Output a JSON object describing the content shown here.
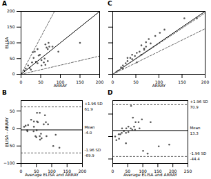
{
  "chart_data": [
    {
      "type": "scatter",
      "title": "A",
      "series": [
        {
          "type": "scatter",
          "color": "#555555",
          "x": [
            8,
            12,
            18,
            22,
            28,
            32,
            38,
            42,
            48,
            52,
            58,
            62,
            68,
            72,
            62,
            68,
            35,
            42,
            52,
            25,
            30,
            45,
            60,
            70,
            80,
            95,
            150,
            65
          ],
          "values": [
            12,
            18,
            28,
            20,
            38,
            52,
            40,
            80,
            62,
            45,
            38,
            95,
            80,
            88,
            30,
            42,
            72,
            35,
            28,
            15,
            70,
            60,
            50,
            100,
            88,
            72,
            100,
            85
          ]
        },
        {
          "type": "line",
          "color": "black",
          "line_style": "solid",
          "x": [
            0,
            200
          ],
          "values": [
            0,
            200
          ]
        },
        {
          "type": "line",
          "color": "#666666",
          "line_style": "dashed",
          "x": [
            0,
            85
          ],
          "values": [
            0,
            200
          ]
        },
        {
          "type": "line",
          "color": "#666666",
          "line_style": "dashed",
          "x": [
            0,
            200
          ],
          "values": [
            0,
            58
          ]
        }
      ],
      "xlim": [
        0,
        200
      ],
      "ylim": [
        0,
        200
      ],
      "xticks": [
        0,
        50,
        100,
        150,
        200
      ],
      "yticks": [
        0,
        50,
        100,
        150,
        200
      ],
      "xlabel": "ARRAY",
      "ylabel": "ELISA"
    },
    {
      "type": "scatter",
      "title": "B",
      "series": [
        {
          "type": "scatter",
          "color": "#555555",
          "x": [
            10,
            15,
            23,
            21,
            33,
            42,
            42,
            61,
            55,
            51,
            47,
            78,
            74,
            81,
            65,
            88,
            83,
            105,
            113,
            125,
            62,
            67,
            61,
            52,
            41,
            50,
            20,
            52
          ],
          "values": [
            5,
            8,
            10,
            -8,
            25,
            20,
            5,
            45,
            18,
            -5,
            -22,
            38,
            12,
            18,
            -15,
            12,
            -22,
            -50,
            -18,
            -55,
            -32,
            -28,
            -22,
            45,
            -8,
            -25,
            -5,
            20
          ]
        }
      ],
      "hlines": [
        {
          "name": "+1.96 SD",
          "value": 61.9,
          "value_label": "61.9",
          "color": "#666666",
          "line_style": "dashed"
        },
        {
          "name": "Mean",
          "value": -4.0,
          "value_label": "-4.0",
          "color": "black",
          "line_style": "solid"
        },
        {
          "name": "-1.96 SD",
          "value": -69.9,
          "value_label": "-69.9",
          "color": "#666666",
          "line_style": "dashed"
        }
      ],
      "xlim": [
        0,
        200
      ],
      "ylim": [
        -100,
        80
      ],
      "xticks": [
        0,
        50,
        100,
        150,
        200
      ],
      "yticks": [
        -100,
        -50,
        0,
        50
      ],
      "xlabel": "Average ELISA and ARRAY",
      "ylabel": "ELISA - ARRAY"
    },
    {
      "type": "scatter",
      "title": "C",
      "series": [
        {
          "type": "scatter",
          "color": "#555555",
          "x": [
            8,
            12,
            18,
            22,
            28,
            32,
            38,
            42,
            48,
            52,
            58,
            62,
            68,
            72,
            78,
            82,
            92,
            102,
            112,
            155,
            62,
            68,
            72,
            32,
            42,
            52,
            22,
            182
          ],
          "values": [
            8,
            12,
            22,
            28,
            35,
            42,
            52,
            62,
            58,
            68,
            72,
            92,
            82,
            102,
            112,
            98,
            122,
            132,
            142,
            178,
            62,
            78,
            88,
            52,
            48,
            38,
            18,
            178
          ]
        },
        {
          "type": "line",
          "color": "black",
          "line_style": "solid",
          "x": [
            0,
            200
          ],
          "values": [
            0,
            200
          ]
        },
        {
          "type": "line",
          "color": "#666666",
          "line_style": "dashed",
          "x": [
            0,
            200
          ],
          "values": [
            0,
            195
          ]
        },
        {
          "type": "line",
          "color": "#666666",
          "line_style": "dashed",
          "x": [
            0,
            200
          ],
          "values": [
            0,
            145
          ]
        }
      ],
      "xlim": [
        0,
        200
      ],
      "ylim": [
        0,
        200
      ],
      "xticks": [
        0,
        50,
        100,
        150,
        200
      ],
      "yticks": [
        0,
        50,
        100,
        150,
        200
      ],
      "xlabel": "ARRAY",
      "tick_labels": "x"
    },
    {
      "type": "scatter",
      "title": "D",
      "series": [
        {
          "type": "scatter",
          "color": "#555555",
          "x": [
            8,
            12,
            20,
            25,
            30,
            37,
            45,
            52,
            52,
            60,
            65,
            76,
            74,
            86,
            97,
            89,
            101,
            116,
            126,
            153,
            61,
            67,
            71,
            31,
            44,
            44,
            21,
            188
          ],
          "values": [
            0,
            -8,
            5,
            5,
            8,
            12,
            18,
            22,
            10,
            18,
            15,
            32,
            15,
            32,
            38,
            18,
            -32,
            -38,
            32,
            -22,
            68,
            42,
            22,
            18,
            8,
            -15,
            -5,
            -18
          ]
        }
      ],
      "hlines": [
        {
          "name": "+1.96 SD",
          "value": 70.9,
          "value_label": "70.9",
          "color": "#666666",
          "line_style": "dashed"
        },
        {
          "name": "Mean",
          "value": 13.3,
          "value_label": "13.3",
          "color": "black",
          "line_style": "solid"
        },
        {
          "name": "-1.96 SD",
          "value": -44.4,
          "value_label": "-44.4",
          "color": "#666666",
          "line_style": "dashed"
        }
      ],
      "xlim": [
        0,
        250
      ],
      "ylim": [
        -60,
        80
      ],
      "xticks": [
        0,
        50,
        100,
        150,
        200,
        250
      ],
      "yticks": [
        -50,
        0,
        50
      ],
      "xlabel": "Average ELISA and ARRAY",
      "tick_labels": "x"
    }
  ]
}
